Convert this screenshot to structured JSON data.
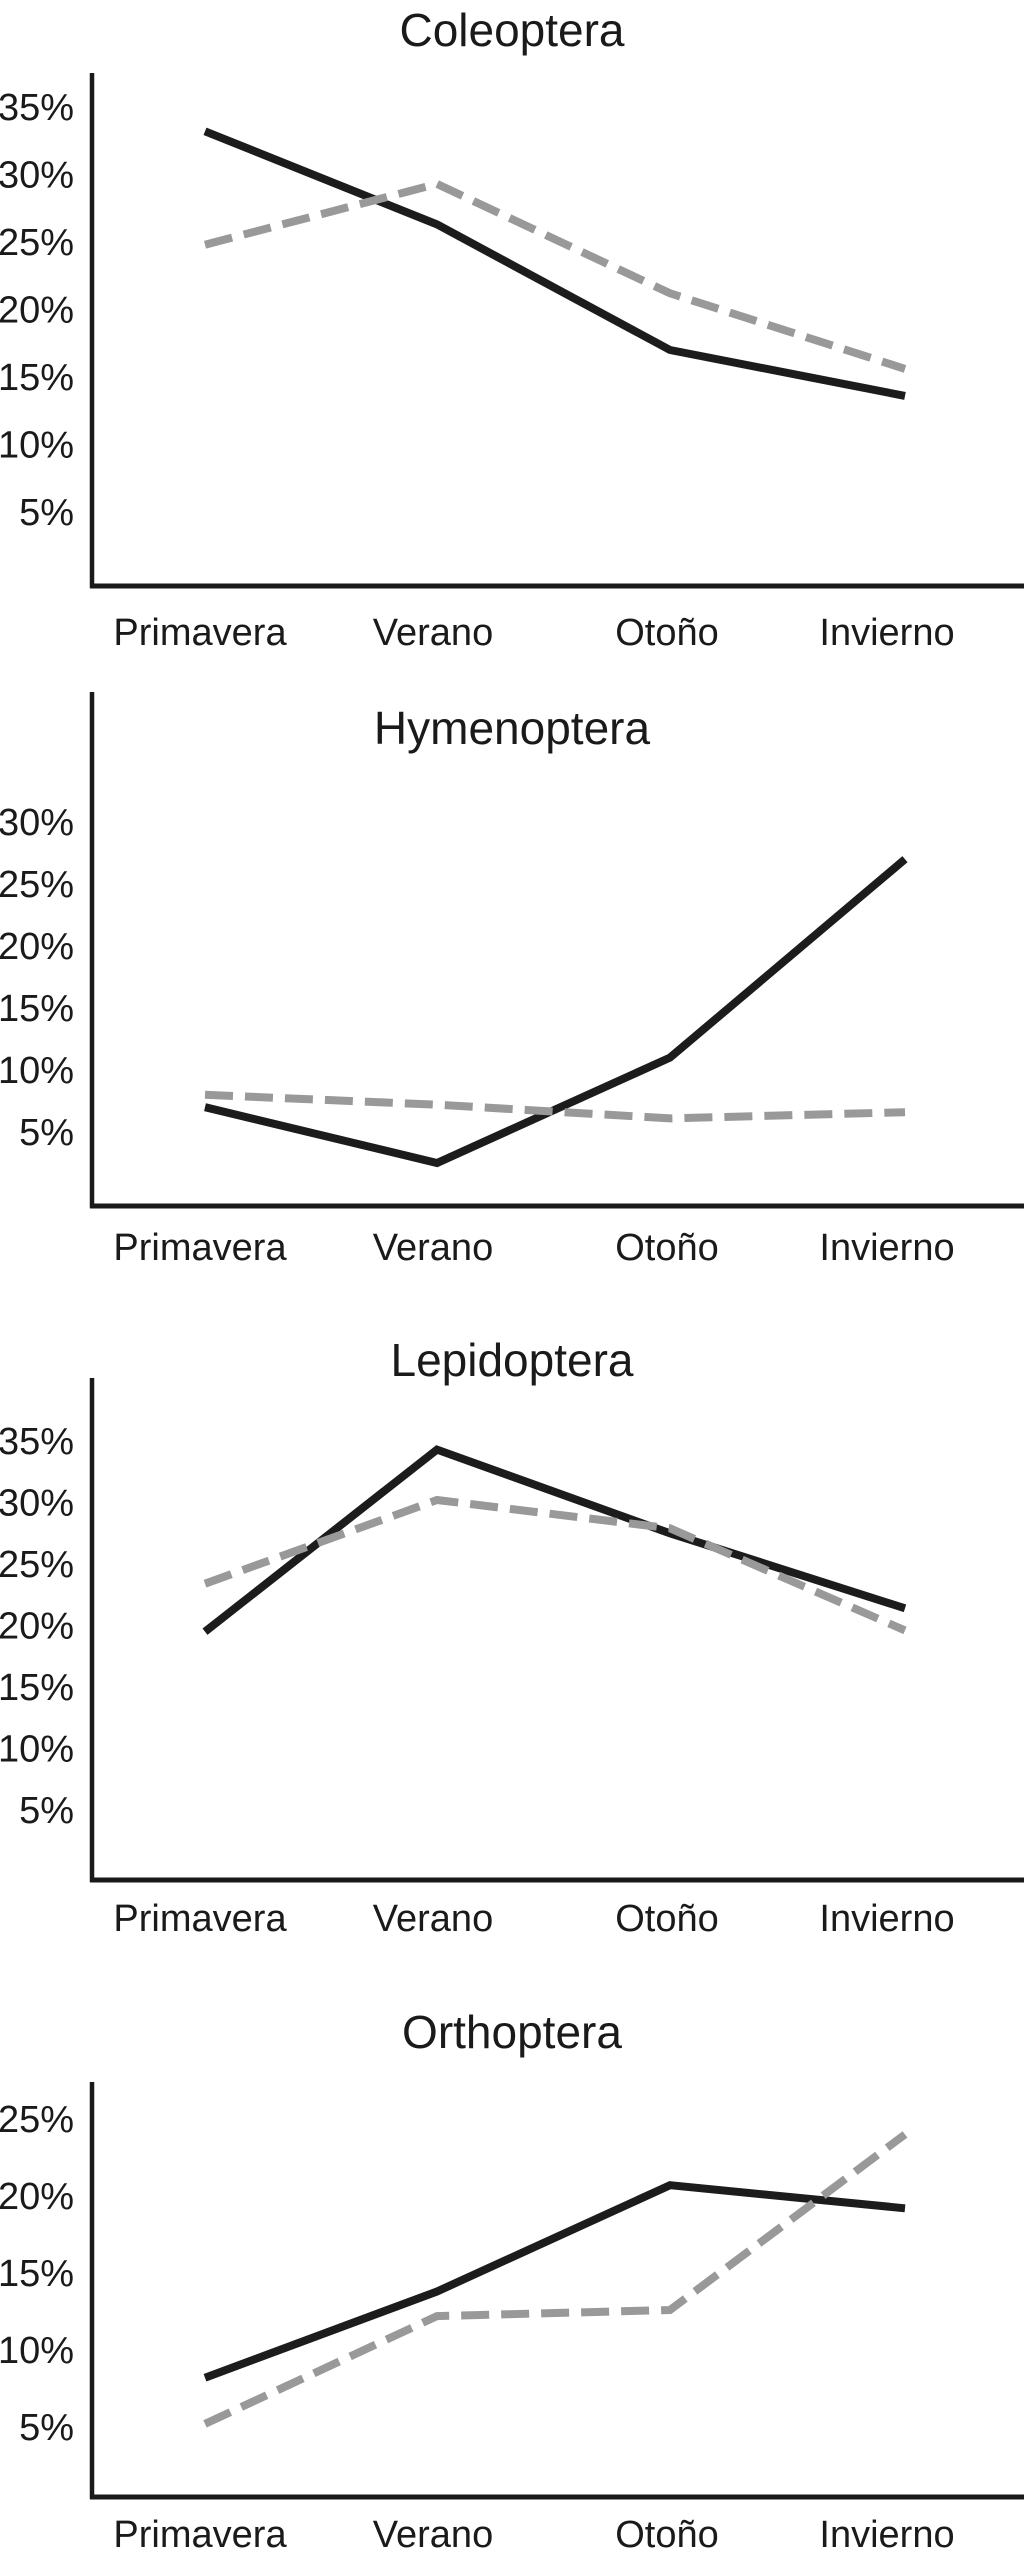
{
  "figure": {
    "background": "#ffffff",
    "axis_color": "#1a1a1a",
    "solid_series_color": "#1c1c1c",
    "dashed_series_color": "#999999"
  },
  "chart_data": [
    {
      "type": "line",
      "title": "Coleoptera",
      "categories": [
        "Primavera",
        "Verano",
        "Otoño",
        "Invierno"
      ],
      "y_tick_labels": [
        "35%",
        "30%",
        "25%",
        "20%",
        "15%",
        "10%",
        "5%"
      ],
      "y_tick_values": [
        35,
        30,
        25,
        20,
        15,
        10,
        5
      ],
      "ylim": [
        0,
        37.5
      ],
      "grid": false,
      "legend": null,
      "series": [
        {
          "name": "solid",
          "style": "solid",
          "color": "#1c1c1c",
          "values": [
            33.2,
            26.3,
            17.0,
            13.6
          ]
        },
        {
          "name": "dashed",
          "style": "dashed",
          "color": "#999999",
          "values": [
            24.8,
            29.3,
            21.2,
            15.6
          ]
        }
      ]
    },
    {
      "type": "line",
      "title": "Hymenoptera",
      "categories": [
        "Primavera",
        "Verano",
        "Otoño",
        "Invierno"
      ],
      "y_tick_labels": [
        "30%",
        "25%",
        "20%",
        "15%",
        "10%",
        "5%"
      ],
      "y_tick_values": [
        30,
        25,
        20,
        15,
        10,
        5
      ],
      "ylim": [
        0,
        40
      ],
      "grid": false,
      "legend": null,
      "series": [
        {
          "name": "solid",
          "style": "solid",
          "color": "#1c1c1c",
          "values": [
            7.0,
            2.5,
            11.0,
            27.0
          ]
        },
        {
          "name": "dashed",
          "style": "dashed",
          "color": "#999999",
          "values": [
            8.0,
            7.2,
            6.1,
            6.6
          ]
        }
      ]
    },
    {
      "type": "line",
      "title": "Lepidoptera",
      "categories": [
        "Primavera",
        "Verano",
        "Otoño",
        "Invierno"
      ],
      "y_tick_labels": [
        "35%",
        "30%",
        "25%",
        "20%",
        "15%",
        "10%",
        "5%"
      ],
      "y_tick_values": [
        35,
        30,
        25,
        20,
        15,
        10,
        5
      ],
      "ylim": [
        0,
        40
      ],
      "grid": false,
      "legend": null,
      "series": [
        {
          "name": "solid",
          "style": "solid",
          "color": "#1c1c1c",
          "values": [
            19.5,
            34.3,
            27.5,
            21.4
          ]
        },
        {
          "name": "dashed",
          "style": "dashed",
          "color": "#999999",
          "values": [
            23.4,
            30.2,
            27.9,
            19.6
          ]
        }
      ]
    },
    {
      "type": "line",
      "title": "Orthoptera",
      "categories": [
        "Primavera",
        "Verano",
        "Otoño",
        "Invierno"
      ],
      "y_tick_labels": [
        "25%",
        "20%",
        "15%",
        "10%",
        "5%"
      ],
      "y_tick_values": [
        25,
        20,
        15,
        10,
        5
      ],
      "ylim": [
        0,
        27.5
      ],
      "grid": false,
      "legend": null,
      "series": [
        {
          "name": "solid",
          "style": "solid",
          "color": "#1c1c1c",
          "values": [
            8.2,
            13.8,
            20.7,
            19.2
          ]
        },
        {
          "name": "dashed",
          "style": "dashed",
          "color": "#999999",
          "values": [
            5.2,
            12.2,
            12.6,
            24.0
          ]
        }
      ]
    }
  ]
}
